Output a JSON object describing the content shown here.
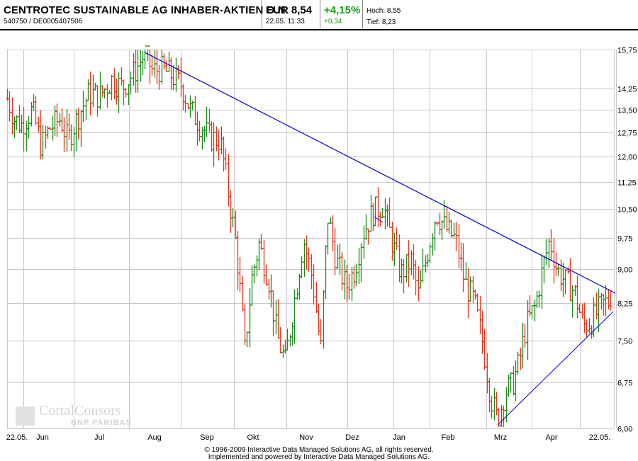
{
  "header": {
    "title": "CENTROTEC SUSTAINABLE AG INHABER-AKTIEN O.N.",
    "ids": "540750 / DE0005407506",
    "price": "EUR 8,54",
    "timestamp": "22.05. 11:33",
    "change_pct": "+4,15%",
    "change_abs": "+0,34",
    "high_label": "Hoch: 8,55",
    "low_label": "Tief: 8,23"
  },
  "colors": {
    "up": "#1a8c1a",
    "down": "#e8341c",
    "trendline": "#0000cc",
    "grid": "#c8c8c8",
    "change_positive": "#1a9b1a"
  },
  "logo": {
    "text": "CortalConsors",
    "sub": "BNP PARIBAS"
  },
  "footer": {
    "line1": "© 1996-2009 Interactive Data Managed Solutions AG, all rights reserved.",
    "line2": "Implemented and powered by Interactive Data Managed Solutions AG."
  },
  "chart_data": {
    "type": "ohlc",
    "title": "CENTROTEC SUSTAINABLE AG INHABER-AKTIEN O.N.",
    "xlabel": "",
    "ylabel": "EUR",
    "y_scale": "log",
    "ylim": [
      6.0,
      15.75
    ],
    "y_ticks": [
      "15,75",
      "14,25",
      "13,50",
      "12,75",
      "12,00",
      "11,25",
      "10,50",
      "9,75",
      "9,00",
      "8,25",
      "7,50",
      "6,75",
      "6,00"
    ],
    "y_tick_values": [
      15.75,
      14.25,
      13.5,
      12.75,
      12.0,
      11.25,
      10.5,
      9.75,
      9.0,
      8.25,
      7.5,
      6.75,
      6.0
    ],
    "x_ticks": [
      "22.05.",
      "Jun",
      "Jul",
      "Aug",
      "Sep",
      "Okt",
      "Nov",
      "Dez",
      "Jan",
      "Feb",
      "Mrz",
      "Apr",
      "22.05."
    ],
    "grid": true,
    "legend": null,
    "price_path_monthly": {
      "x": [
        "22.05.",
        "Jun",
        "Jul",
        "Aug",
        "Sep",
        "Okt",
        "Nov",
        "Dez",
        "Jan",
        "Feb",
        "Mrz",
        "Apr",
        "22.05."
      ],
      "approx_close": [
        13.9,
        13.2,
        14.0,
        15.3,
        14.0,
        10.6,
        8.0,
        9.5,
        10.8,
        10.2,
        6.2,
        8.3,
        8.54
      ]
    },
    "key_points": {
      "period_high": {
        "date": "Aug (early)",
        "value": 15.6
      },
      "period_low": {
        "date": "Mrz (early)",
        "value": 6.05
      },
      "last": {
        "date": "22.05.",
        "value": 8.54
      }
    },
    "annotations": [
      {
        "type": "trendline",
        "name": "resistance",
        "from": {
          "date": "Aug",
          "value": 15.6
        },
        "to": {
          "date": "22.05.",
          "value": 8.5
        },
        "color": "#0000cc"
      },
      {
        "type": "trendline",
        "name": "support",
        "from": {
          "date": "Mrz",
          "value": 6.05
        },
        "to": {
          "date": "22.05.",
          "value": 8.1
        },
        "color": "#0000cc"
      }
    ]
  }
}
